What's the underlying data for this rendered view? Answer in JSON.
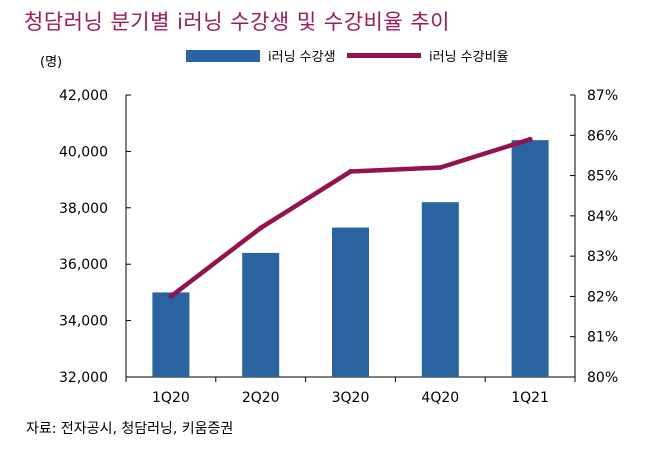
{
  "title": "청담러닝 분기별 i러닝 수강생 및 수강비율 추이",
  "unit_label": "(명)",
  "source": "자료: 전자공시, 청담러닝, 키움증권",
  "colors": {
    "title": "#a3195b",
    "bar": "#2a64a0",
    "line": "#93124f"
  },
  "chart_data": {
    "type": "bar",
    "title": "청담러닝 분기별 i러닝 수강생 및 수강비율 추이",
    "categories": [
      "1Q20",
      "2Q20",
      "3Q20",
      "4Q20",
      "1Q21"
    ],
    "series": [
      {
        "name": "i러닝 수강생",
        "type": "bar",
        "axis": "left",
        "values": [
          35000,
          36400,
          37300,
          38200,
          40400
        ]
      },
      {
        "name": "i러닝 수강비율",
        "type": "line",
        "axis": "right",
        "values": [
          82.0,
          83.7,
          85.1,
          85.2,
          85.9
        ]
      }
    ],
    "y_left": {
      "lim": [
        32000,
        42000
      ],
      "ticks": [
        "32,000",
        "34,000",
        "36,000",
        "38,000",
        "40,000",
        "42,000"
      ]
    },
    "y_right": {
      "lim": [
        80,
        87
      ],
      "ticks": [
        "80%",
        "81%",
        "82%",
        "83%",
        "84%",
        "85%",
        "86%",
        "87%"
      ]
    },
    "legend": {
      "placement": "top-center",
      "entries": [
        "i러닝 수강생",
        "i러닝 수강비율"
      ]
    },
    "grid": false
  }
}
